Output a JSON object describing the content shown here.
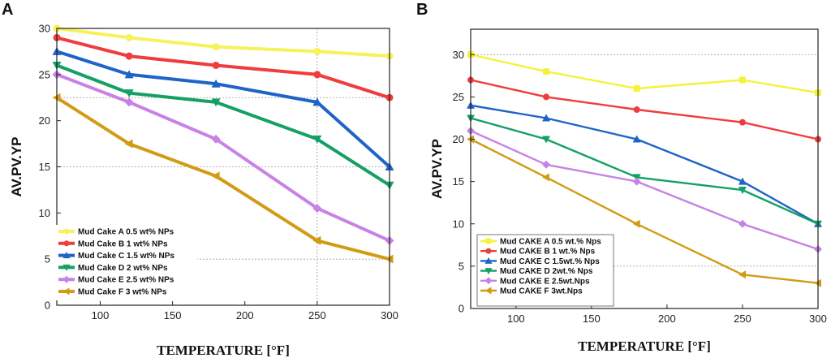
{
  "chart_data": [
    {
      "type": "line",
      "panel_label": "A",
      "xlabel": "TEMPERATURE [°F]",
      "ylabel": "AV.PV.YP",
      "xlim": [
        70,
        300
      ],
      "ylim": [
        0,
        30
      ],
      "xticks": [
        100,
        150,
        200,
        250,
        300
      ],
      "yticks": [
        0,
        5,
        10,
        15,
        20,
        25,
        30
      ],
      "x": [
        70,
        120,
        180,
        250,
        300
      ],
      "legend_position": "bottom-left",
      "series": [
        {
          "name": "Mud Cake A 0.5 wt% NPs",
          "color": "#f5f25a",
          "marker": "circle",
          "values": [
            30,
            29,
            28,
            27.5,
            27
          ]
        },
        {
          "name": "Mud Cake B 1 wt% NPs",
          "color": "#f03c3c",
          "marker": "circle",
          "values": [
            29,
            27,
            26,
            25,
            22.5
          ]
        },
        {
          "name": "Mud Cake C 1.5 wt% NPs",
          "color": "#1e64c8",
          "marker": "triangle-up",
          "values": [
            27.5,
            25,
            24,
            22,
            15
          ]
        },
        {
          "name": "Mud Cake D 2  wt% NPs",
          "color": "#14a064",
          "marker": "triangle-down",
          "values": [
            26,
            23,
            22,
            18,
            13
          ]
        },
        {
          "name": "Mud Cake E 2.5  wt% NPs",
          "color": "#c882e6",
          "marker": "diamond",
          "values": [
            25,
            22,
            18,
            10.5,
            7
          ]
        },
        {
          "name": "Mud Cake F 3  wt% NPs",
          "color": "#d29b14",
          "marker": "triangle-left",
          "values": [
            22.5,
            17.5,
            14,
            7,
            5
          ]
        }
      ]
    },
    {
      "type": "line",
      "panel_label": "B",
      "xlabel": "TEMPERATURE [°F]",
      "ylabel": "AV.PV.YP",
      "xlim": [
        70,
        300
      ],
      "ylim": [
        0,
        33
      ],
      "xticks": [
        100,
        150,
        200,
        250,
        300
      ],
      "yticks": [
        0,
        5,
        10,
        15,
        20,
        25,
        30
      ],
      "x": [
        70,
        120,
        180,
        250,
        300
      ],
      "legend_position": "bottom-left",
      "series": [
        {
          "name": "Mud CAKE A 0.5 wt.% Nps",
          "color": "#f5f23c",
          "marker": "square",
          "values": [
            30,
            28,
            26,
            27,
            25.5
          ]
        },
        {
          "name": "Mud CAKE B 1 wt.% Nps",
          "color": "#f03c3c",
          "marker": "circle",
          "values": [
            27,
            25,
            23.5,
            22,
            20
          ]
        },
        {
          "name": "Mud CAKE C 1.5wt.% Nps",
          "color": "#1e64c8",
          "marker": "triangle-up",
          "values": [
            24,
            22.5,
            20,
            15,
            10
          ]
        },
        {
          "name": "Mud CAKE D 2wt.% Nps",
          "color": "#14a064",
          "marker": "triangle-down",
          "values": [
            22.5,
            20,
            15.5,
            14,
            10
          ]
        },
        {
          "name": "Mud CAKE E 2.5wt.Nps",
          "color": "#c882e6",
          "marker": "diamond",
          "values": [
            21,
            17,
            15,
            10,
            7
          ]
        },
        {
          "name": "Mud CAKE F 3wt.Nps",
          "color": "#d29b14",
          "marker": "triangle-left",
          "values": [
            20,
            15.5,
            10,
            4,
            3
          ]
        }
      ]
    }
  ]
}
